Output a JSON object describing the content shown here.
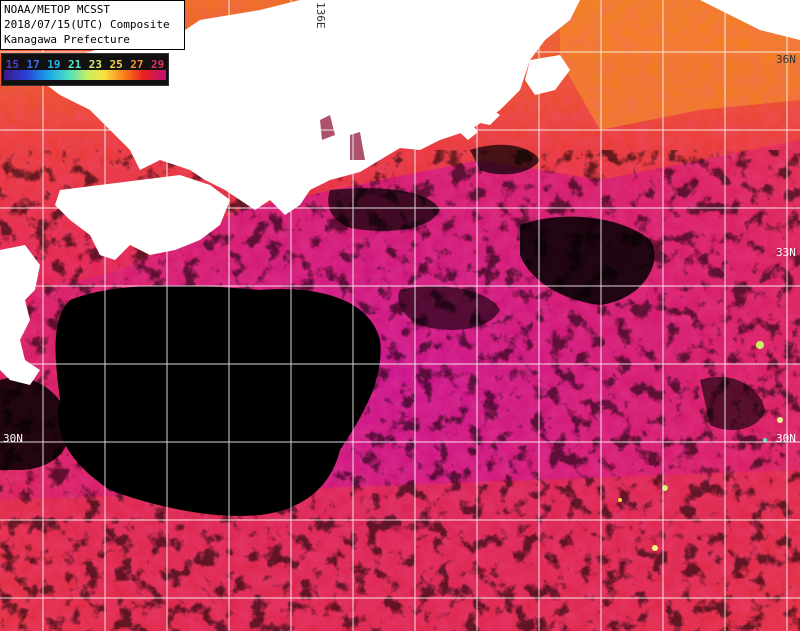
{
  "header": {
    "line1": "NOAA/METOP MCSST",
    "line2": "2018/07/15(UTC) Composite",
    "line3": "Kanagawa Prefecture"
  },
  "legend": {
    "values": [
      "15",
      "17",
      "19",
      "21",
      "23",
      "25",
      "27",
      "29"
    ],
    "colors": [
      "#5b3ad8",
      "#3a6cf0",
      "#1fb8f0",
      "#59e8c8",
      "#d8f070",
      "#f8d050",
      "#f89030",
      "#e83060"
    ]
  },
  "map": {
    "lat_labels": [
      "36N",
      "33N",
      "30N",
      "30N"
    ],
    "lon_labels": [
      "136E"
    ],
    "colors": {
      "land": "#ffffff",
      "cloud": "#000000",
      "sst_warm": "#e8304a",
      "sst_hot": "#c01680",
      "sst_coastal": "#f07018",
      "grid": "#ffffff"
    }
  }
}
